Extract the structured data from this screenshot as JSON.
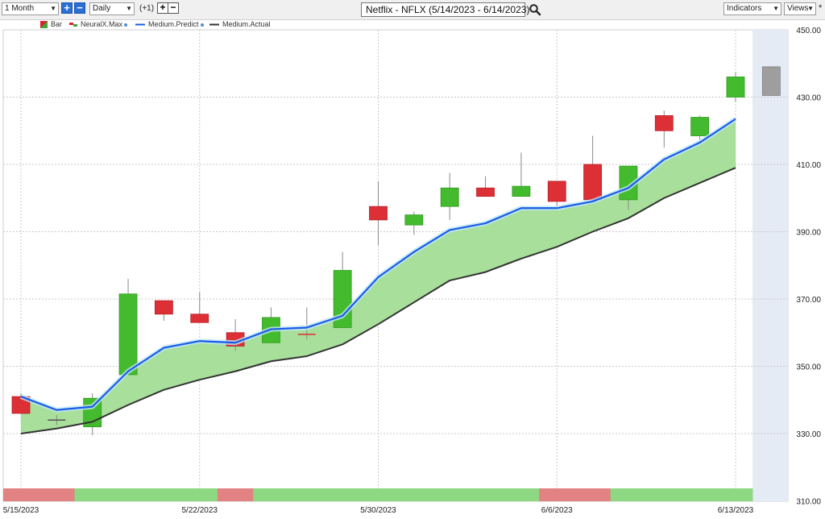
{
  "toolbar": {
    "period": "1 Month",
    "interval": "Daily",
    "offset": "(+1)",
    "title": "Netflix - NFLX (5/14/2023 - 6/14/2023)",
    "indicators": "Indicators",
    "views": "Views",
    "star": "*"
  },
  "legend": [
    {
      "label": "Bar",
      "color": "#d9242b"
    },
    {
      "label": "NeuralX.Max",
      "color": "#3aa83a"
    },
    {
      "label": "Medium.Predict",
      "color": "#1a5ce8"
    },
    {
      "label": "Medium.Actual",
      "color": "#333333"
    }
  ],
  "colors": {
    "up": "#44bb2f",
    "down": "#dc2f36",
    "predict": "#1a5ce8",
    "actual": "#333333",
    "fill": "#a3dd96",
    "forecast_bg": "#e4ebf5",
    "forecast_bar": "#9e9e9e"
  },
  "chart_data": {
    "type": "candlestick",
    "x_tick_labels": [
      "5/15/2023",
      "5/22/2023",
      "5/30/2023",
      "6/6/2023",
      "6/13/2023"
    ],
    "y_tick_labels": [
      "450.00",
      "430.00",
      "410.00",
      "390.00",
      "370.00",
      "350.00",
      "330.00",
      "310.00"
    ],
    "ylim": [
      310,
      450
    ],
    "dates": [
      "5/15",
      "5/16",
      "5/17",
      "5/18",
      "5/19",
      "5/22",
      "5/23",
      "5/24",
      "5/25",
      "5/26",
      "5/30",
      "5/31",
      "6/1",
      "6/2",
      "6/5",
      "6/6",
      "6/7",
      "6/8",
      "6/9",
      "6/12",
      "6/13"
    ],
    "candles": [
      {
        "date": "5/15",
        "open": 341.0,
        "close": 336.0,
        "high": 342.0,
        "low": 336.0
      },
      {
        "date": "5/16",
        "open": 334.0,
        "close": 334.0,
        "high": 335.5,
        "low": 332.5
      },
      {
        "date": "5/17",
        "open": 332.0,
        "close": 340.5,
        "high": 342.0,
        "low": 329.5
      },
      {
        "date": "5/18",
        "open": 347.5,
        "close": 371.5,
        "high": 376.0,
        "low": 347.5
      },
      {
        "date": "5/19",
        "open": 369.5,
        "close": 365.5,
        "high": 369.5,
        "low": 363.5
      },
      {
        "date": "5/22",
        "open": 365.5,
        "close": 363.0,
        "high": 372.0,
        "low": 363.0
      },
      {
        "date": "5/23",
        "open": 360.0,
        "close": 356.0,
        "high": 364.0,
        "low": 354.5
      },
      {
        "date": "5/24",
        "open": 357.0,
        "close": 364.5,
        "high": 367.5,
        "low": 357.0
      },
      {
        "date": "5/25",
        "open": 359.5,
        "close": 359.5,
        "high": 367.5,
        "low": 358.0
      },
      {
        "date": "5/26",
        "open": 361.5,
        "close": 378.5,
        "high": 384.0,
        "low": 361.5
      },
      {
        "date": "5/30",
        "open": 397.5,
        "close": 393.5,
        "high": 405.0,
        "low": 386.0
      },
      {
        "date": "5/31",
        "open": 392.0,
        "close": 395.0,
        "high": 396.0,
        "low": 389.0
      },
      {
        "date": "6/1",
        "open": 397.5,
        "close": 403.0,
        "high": 407.5,
        "low": 393.5
      },
      {
        "date": "6/2",
        "open": 403.0,
        "close": 400.5,
        "high": 406.5,
        "low": 400.5
      },
      {
        "date": "6/5",
        "open": 400.5,
        "close": 403.5,
        "high": 413.5,
        "low": 400.5
      },
      {
        "date": "6/6",
        "open": 405.0,
        "close": 399.0,
        "high": 405.0,
        "low": 397.5
      },
      {
        "date": "6/7",
        "open": 410.0,
        "close": 399.5,
        "high": 418.5,
        "low": 399.5
      },
      {
        "date": "6/8",
        "open": 399.5,
        "close": 409.5,
        "high": 409.5,
        "low": 396.5
      },
      {
        "date": "6/9",
        "open": 424.5,
        "close": 420.0,
        "high": 426.0,
        "low": 415.0
      },
      {
        "date": "6/12",
        "open": 418.5,
        "close": 424.0,
        "high": 424.5,
        "low": 416.5
      },
      {
        "date": "6/13",
        "open": 430.0,
        "close": 436.0,
        "high": 437.5,
        "low": 428.5
      }
    ],
    "forecast_bar": {
      "date": "6/14",
      "open": 430.5,
      "close": 439.0
    },
    "series": [
      {
        "name": "Medium.Predict",
        "values": [
          341.0,
          337.0,
          338.0,
          348.5,
          355.5,
          357.5,
          357.0,
          361.0,
          361.5,
          365.0,
          376.5,
          384.0,
          390.5,
          392.5,
          397.0,
          397.0,
          399.0,
          403.0,
          411.5,
          416.5,
          423.5
        ]
      },
      {
        "name": "Medium.Actual",
        "values": [
          330.0,
          331.5,
          333.5,
          338.5,
          343.0,
          346.0,
          348.5,
          351.5,
          353.0,
          356.5,
          362.5,
          369.0,
          375.5,
          378.0,
          382.0,
          385.5,
          390.0,
          394.0,
          400.0,
          404.5,
          409.0
        ]
      }
    ],
    "signal_strip": [
      "down",
      "down",
      "up",
      "up",
      "up",
      "up",
      "down",
      "up",
      "up",
      "up",
      "up",
      "up",
      "up",
      "up",
      "up",
      "down",
      "down",
      "up",
      "up",
      "up",
      "up"
    ]
  }
}
